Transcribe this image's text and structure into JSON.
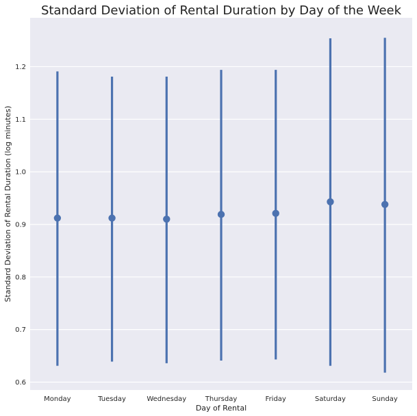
{
  "chart_data": {
    "type": "pointplot",
    "title": "Standard Deviation of Rental Duration by Day of the Week",
    "xlabel": "Day of Rental",
    "ylabel": "Standard Deviation of Rental Duration (log minutes)",
    "categories": [
      "Monday",
      "Tuesday",
      "Wednesday",
      "Thursday",
      "Friday",
      "Saturday",
      "Sunday"
    ],
    "values": [
      0.912,
      0.912,
      0.91,
      0.919,
      0.921,
      0.943,
      0.938
    ],
    "error_low": [
      0.631,
      0.639,
      0.636,
      0.641,
      0.643,
      0.631,
      0.618
    ],
    "error_high": [
      1.191,
      1.181,
      1.181,
      1.194,
      1.194,
      1.254,
      1.255
    ],
    "ylim": [
      0.585,
      1.293
    ],
    "yticks": [
      "0.6",
      "0.7",
      "0.8",
      "0.9",
      "1.0",
      "1.1",
      "1.2"
    ],
    "grid": true,
    "legend": "none",
    "colors": {
      "series": "#4c72b0",
      "background": "#eaeaf2",
      "grid": "#ffffff"
    }
  }
}
